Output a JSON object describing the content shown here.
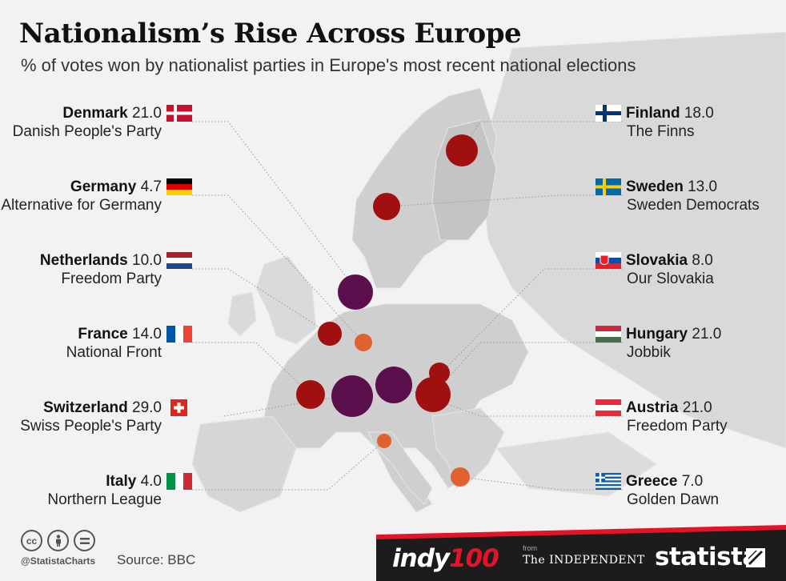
{
  "title": "Nationalism’s Rise Across Europe",
  "subtitle": "% of votes won by nationalist parties in Europe's most recent national elections",
  "entries": [
    {
      "country": "Denmark",
      "value": "21.0",
      "party": "Danish People's Party",
      "flag": "denmark-flag-icon"
    },
    {
      "country": "Germany",
      "value": "4.7",
      "party": "Alternative for Germany",
      "flag": "germany-flag-icon"
    },
    {
      "country": "Netherlands",
      "value": "10.0",
      "party": "Freedom Party",
      "flag": "netherlands-flag-icon"
    },
    {
      "country": "France",
      "value": "14.0",
      "party": "National Front",
      "flag": "france-flag-icon"
    },
    {
      "country": "Switzerland",
      "value": "29.0",
      "party": "Swiss People's Party",
      "flag": "switzerland-flag-icon"
    },
    {
      "country": "Italy",
      "value": "4.0",
      "party": "Northern League",
      "flag": "italy-flag-icon"
    },
    {
      "country": "Finland",
      "value": "18.0",
      "party": "The Finns",
      "flag": "finland-flag-icon"
    },
    {
      "country": "Sweden",
      "value": "13.0",
      "party": "Sweden Democrats",
      "flag": "sweden-flag-icon"
    },
    {
      "country": "Slovakia",
      "value": "8.0",
      "party": "Our Slovakia",
      "flag": "slovakia-flag-icon"
    },
    {
      "country": "Hungary",
      "value": "21.0",
      "party": "Jobbik",
      "flag": "hungary-flag-icon"
    },
    {
      "country": "Austria",
      "value": "21.0",
      "party": "Freedom Party",
      "flag": "austria-flag-icon"
    },
    {
      "country": "Greece",
      "value": "7.0",
      "party": "Golden Dawn",
      "flag": "greece-flag-icon"
    }
  ],
  "colors": {
    "bubble_low": "#e0622e",
    "bubble_mid": "#a01010",
    "bubble_high": "#5c0f4d",
    "land": "#c9c9c9",
    "land_light": "#dedede",
    "sea": "#f2f2f2"
  },
  "footer": {
    "handle": "@StatistaCharts",
    "source": "Source: BBC",
    "indy_a": "indy",
    "indy_b": "100",
    "from": "from",
    "independent": "The INDEPENDENT",
    "statista": "statista",
    "cc_icons": [
      "cc-icon",
      "by-icon",
      "nd-icon"
    ]
  }
}
